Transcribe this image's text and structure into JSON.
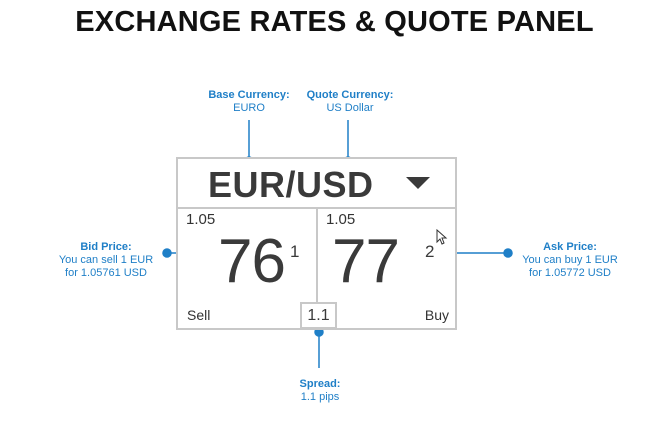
{
  "title": "EXCHANGE RATES & QUOTE PANEL",
  "callouts": {
    "base": {
      "heading": "Base Currency:",
      "body": "EURO"
    },
    "quote": {
      "heading": "Quote Currency:",
      "body": "US Dollar"
    },
    "bid": {
      "heading": "Bid Price:",
      "line1": "You can sell 1 EUR",
      "line2": "for 1.05761 USD"
    },
    "ask": {
      "heading": "Ask Price:",
      "line1": "You can buy 1 EUR",
      "line2": "for 1.05772 USD"
    },
    "spread": {
      "heading": "Spread:",
      "body": "1.1 pips"
    }
  },
  "panel": {
    "pair": "EUR/USD",
    "sell": {
      "prefix": "1.05",
      "pips": "76",
      "fraction": "1",
      "label": "Sell"
    },
    "buy": {
      "prefix": "1.05",
      "pips": "77",
      "fraction": "2",
      "label": "Buy"
    },
    "spread": "1.1"
  },
  "colors": {
    "accent": "#1f7fc7",
    "border": "#c8c8c8",
    "text": "#3a3a3a"
  },
  "icons": {
    "dropdown": "chevron-down-icon",
    "cursor": "mouse-pointer-icon"
  }
}
